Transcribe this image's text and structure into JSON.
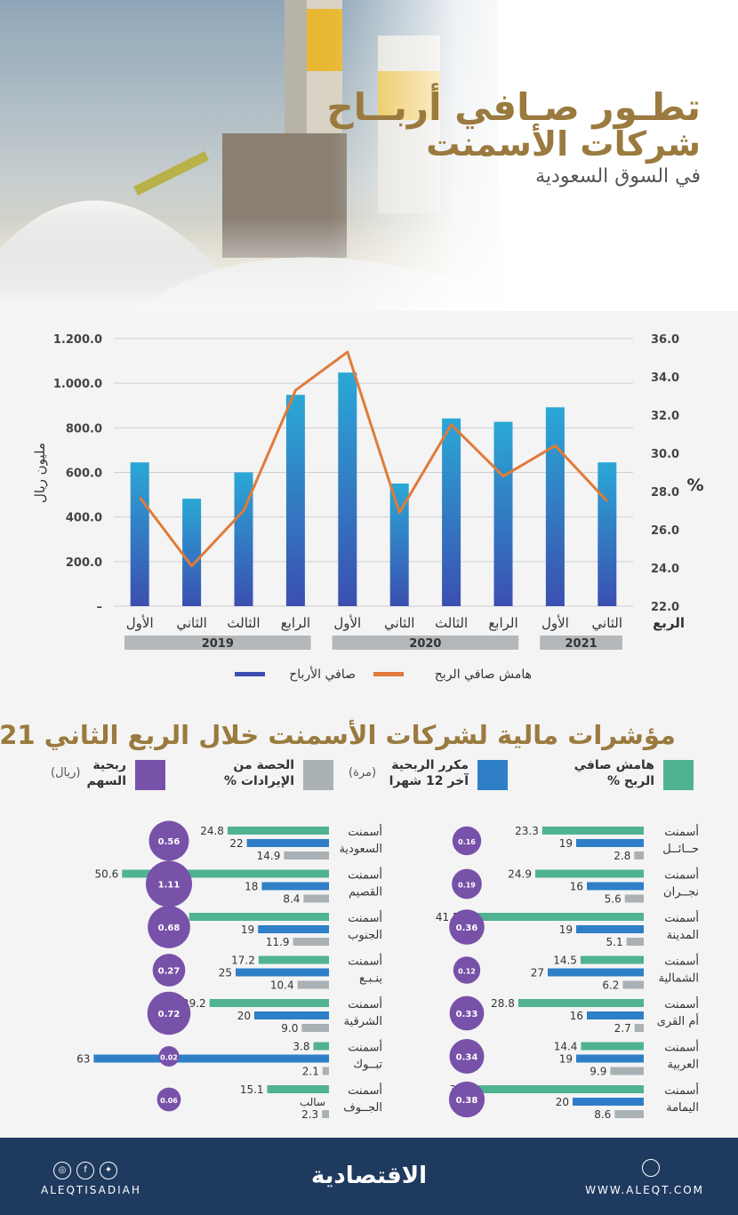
{
  "header": {
    "title_line1": "تطـور صـافي أربــاح",
    "title_line2": "شركات الأسمنت",
    "subtitle": "في السوق السعودية"
  },
  "colors": {
    "bar_gradient_top": "#2aa8d6",
    "bar_gradient_bottom": "#3b4fb0",
    "line": "#e07b39",
    "margin": "#4fb392",
    "multiple": "#2e7fc7",
    "share": "#aab1b5",
    "eps": "#7851a9",
    "gold": "#9a7a3e",
    "footer": "#1f3a5f"
  },
  "chart_data": [
    {
      "type": "bar",
      "categories": [
        "الأول",
        "الثاني",
        "الثالث",
        "الرابع",
        "الأول",
        "الثاني",
        "الثالث",
        "الرابع",
        "الأول",
        "الثاني"
      ],
      "category_groups": [
        {
          "label": "2019",
          "count": 4
        },
        {
          "label": "2020",
          "count": 4
        },
        {
          "label": "2021",
          "count": 2
        }
      ],
      "category_axis_label": "الربع",
      "series": [
        {
          "name": "صافي الأرباح",
          "type": "bar",
          "axis": "left",
          "values": [
            645,
            482,
            600,
            948,
            1048,
            550,
            842,
            827,
            892,
            645
          ]
        },
        {
          "name": "هامش صافي الربح",
          "type": "line",
          "axis": "right",
          "values": [
            27.7,
            24.1,
            27.0,
            33.3,
            35.3,
            26.9,
            31.5,
            28.8,
            30.4,
            27.5
          ]
        }
      ],
      "ylabel": "مليون ريال",
      "ylim": [
        0,
        1200
      ],
      "yticks": [
        "1.200.0",
        "1.000.0",
        "800.0",
        "600.0",
        "400.0",
        "200.0",
        "–"
      ],
      "y2label": "%",
      "y2lim": [
        22,
        36
      ],
      "y2ticks": [
        "36.0",
        "34.0",
        "32.0",
        "30.0",
        "28.0",
        "26.0",
        "24.0",
        "22.0"
      ],
      "grid": true,
      "legend_position": "bottom"
    },
    {
      "type": "bar",
      "title": "مؤشرات مالية لشركات الأسمنت خلال الربع الثاني 2021",
      "legend": [
        {
          "key": "margin",
          "label_l1": "هامش صافي",
          "label_l2": "الربح %"
        },
        {
          "key": "multiple",
          "label_l1": "مكرر الربحية",
          "label_l2": "آخر 12 شهرا",
          "unit": "(مرة)"
        },
        {
          "key": "share",
          "label_l1": "الحصة من",
          "label_l2": "الإيرادات %"
        },
        {
          "key": "eps",
          "label_l1": "ربحية",
          "label_l2": "السهم",
          "unit": "(ريال)"
        }
      ],
      "companies": [
        {
          "name_l1": "أسمنت",
          "name_l2": "حــائــل",
          "margin": 23.3,
          "pe": 19,
          "share": 2.8,
          "eps": 0.16
        },
        {
          "name_l1": "أسمنت",
          "name_l2": "نجــران",
          "margin": 24.9,
          "pe": 16,
          "share": 5.6,
          "eps": 0.19
        },
        {
          "name_l1": "أسمنت",
          "name_l2": "المدينة",
          "margin": 41.5,
          "pe": 19,
          "share": 5.1,
          "eps": 0.36
        },
        {
          "name_l1": "أسمنت",
          "name_l2": "الشمالية",
          "margin": 14.5,
          "pe": 27,
          "share": 6.2,
          "eps": 0.12
        },
        {
          "name_l1": "أسمنت",
          "name_l2": "أم القرى",
          "margin": 28.8,
          "pe": 16,
          "share": 2.7,
          "eps": 0.33
        },
        {
          "name_l1": "أسمنت",
          "name_l2": "العربية",
          "margin": 14.4,
          "pe": 19,
          "share": 9.9,
          "eps": 0.34
        },
        {
          "name_l1": "أسمنت",
          "name_l2": "اليمامة",
          "margin": 38.3,
          "pe": 20,
          "share": 8.6,
          "eps": 0.38
        },
        {
          "name_l1": "أسمنت",
          "name_l2": "السعودية",
          "margin": 24.8,
          "pe": 22,
          "share": 14.9,
          "eps": 0.56
        },
        {
          "name_l1": "أسمنت",
          "name_l2": "القصيم",
          "margin": 50.6,
          "pe": 18,
          "share": 8.4,
          "eps": 1.11
        },
        {
          "name_l1": "أسمنت",
          "name_l2": "الجنوب",
          "margin": 34.2,
          "pe": 19,
          "share": 11.9,
          "eps": 0.68
        },
        {
          "name_l1": "أسمنت",
          "name_l2": "ينـبـع",
          "margin": 17.2,
          "pe": 25,
          "share": 10.4,
          "eps": 0.27
        },
        {
          "name_l1": "أسمنت",
          "name_l2": "الشرقية",
          "margin": 29.2,
          "pe": 20,
          "share": 9.0,
          "eps": 0.72
        },
        {
          "name_l1": "أسمنت",
          "name_l2": "تبــوك",
          "margin": 3.8,
          "pe": 63,
          "share": 2.1,
          "eps": 0.02
        },
        {
          "name_l1": "أسمنت",
          "name_l2": "الجــوف",
          "margin": 15.1,
          "pe": null,
          "pe_label": "سالب",
          "share": 2.3,
          "eps": 0.06
        }
      ]
    }
  ],
  "footer": {
    "social_handle": "ALEQTISADIAH",
    "logo": "الاقتصادية",
    "website": "WWW.ALEQT.COM",
    "icons": [
      "instagram-icon",
      "facebook-icon",
      "twitter-icon",
      "web-icon"
    ]
  }
}
